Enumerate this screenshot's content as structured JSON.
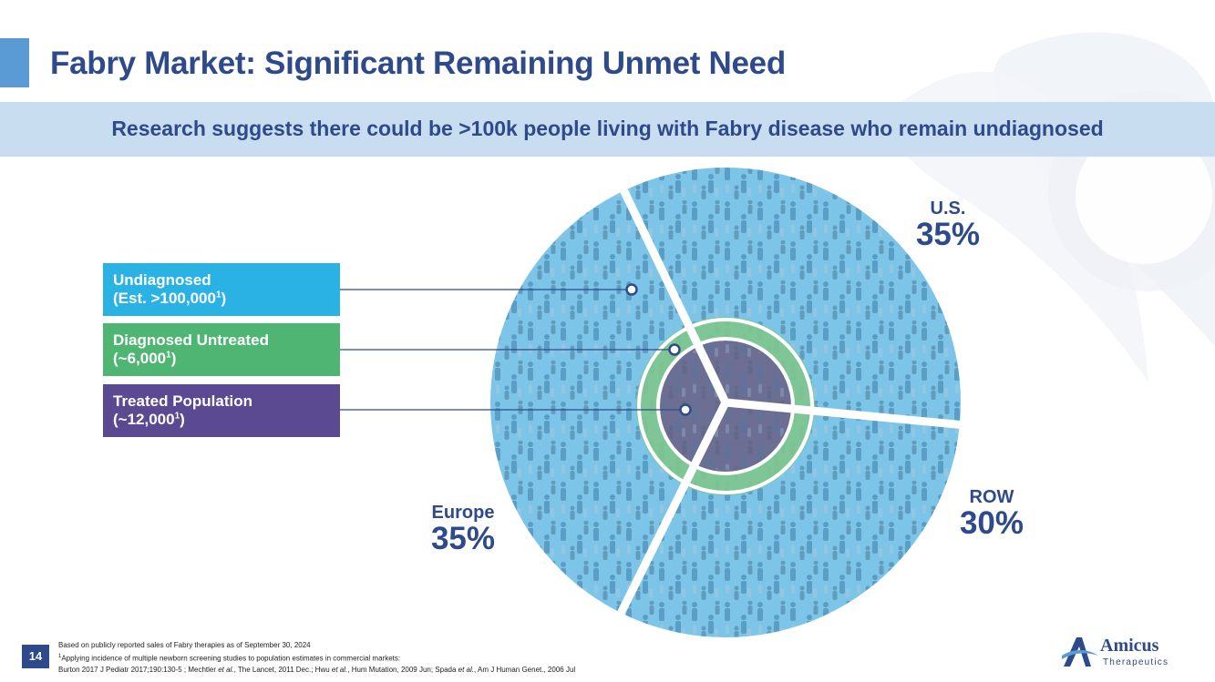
{
  "title": "Fabry Market: Significant Remaining Unmet Need",
  "banner": "Research suggests there could be >100k people living with Fabry disease who remain undiagnosed",
  "legend": [
    {
      "line1": "Undiagnosed",
      "line2a": "(Est. >100,000",
      "sup": "1",
      "line2b": ")",
      "color": "#29b2e3"
    },
    {
      "line1": "Diagnosed Untreated",
      "line2a": "(~6,000",
      "sup": "1",
      "line2b": ")",
      "color": "#4fb573"
    },
    {
      "line1": "Treated Population",
      "line2a": "(~12,000",
      "sup": "1",
      "line2b": ")",
      "color": "#5b4a92"
    }
  ],
  "regions": {
    "us": {
      "name": "U.S.",
      "pct": "35%",
      "share": 35
    },
    "row": {
      "name": "ROW",
      "pct": "30%",
      "share": 30
    },
    "europe": {
      "name": "Europe",
      "pct": "35%",
      "share": 35
    }
  },
  "footnotes": {
    "line1": "Based on publicly reported sales of Fabry therapies as of September 30, 2024",
    "line2_sup": "1",
    "line2": "Applying incidence of multiple newborn screening studies to population estimates in commercial markets:",
    "line3a": "Burton 2017 J Pediatr 2017;190:130-5 ; Mechtler ",
    "line3_etal1": "et al.",
    "line3b": ", The Lancet, 2011 Dec.; Hwu ",
    "line3_etal2": "et al.",
    "line3c": ", Hum Mutation, 2009 Jun; Spada ",
    "line3_etal3": "et al.",
    "line3d": ", Am J Human Genet., 2006 Jul"
  },
  "page_number": "14",
  "logo": {
    "name": "Amicus",
    "sub": "Therapeutics"
  },
  "colors": {
    "navy": "#2e4a8b",
    "undiagnosed": "#29b2e3",
    "untreated": "#4fb573",
    "treated": "#5b4a92",
    "banner": "#c9ddf1"
  }
}
